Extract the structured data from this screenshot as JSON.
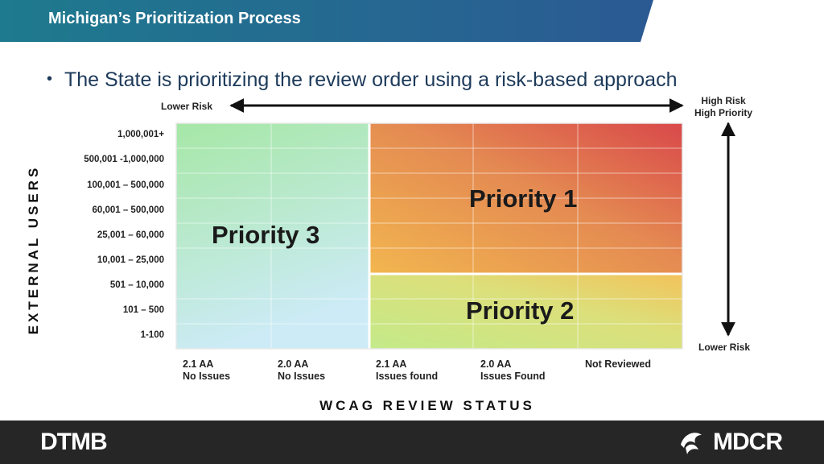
{
  "header": {
    "title": "Michigan’s Prioritization Process"
  },
  "bullet": {
    "text": "The State is prioritizing the review order using a risk-based approach"
  },
  "top_axis": {
    "left_label": "Lower Risk",
    "right_label_line1": "High Risk",
    "right_label_line2": "High Priority"
  },
  "right_axis": {
    "bottom_label": "Lower Risk"
  },
  "y_axis": {
    "title": "EXTERNAL USERS",
    "rows": [
      "1,000,001+",
      "500,001 -1,000,000",
      "100,001 – 500,000",
      "60,001 – 500,000",
      "25,001 – 60,000",
      "10,001 – 25,000",
      "501 – 10,000",
      "101 – 500",
      "1-100"
    ]
  },
  "x_axis": {
    "title": "WCAG REVIEW STATUS",
    "columns": [
      {
        "line1": "2.1 AA",
        "line2": "No Issues"
      },
      {
        "line1": "2.0 AA",
        "line2": "No Issues"
      },
      {
        "line1": "2.1 AA",
        "line2": "Issues found"
      },
      {
        "line1": "2.0 AA",
        "line2": "Issues Found"
      },
      {
        "line1": "Not Reviewed",
        "line2": ""
      }
    ]
  },
  "priorities": {
    "p1": "Priority 1",
    "p2": "Priority 2",
    "p3": "Priority 3"
  },
  "colors": {
    "header_start": "#1f6e8c",
    "header_end": "#2a5d92",
    "priority1_hot": "#d9534f",
    "priority1_warm": "#f0ad4e",
    "priority2": "#cfe08a",
    "priority3": "#a8e6c0",
    "footer": "#262626"
  },
  "footer": {
    "left_logo": "DTMB",
    "right_logo": "MDCR"
  }
}
